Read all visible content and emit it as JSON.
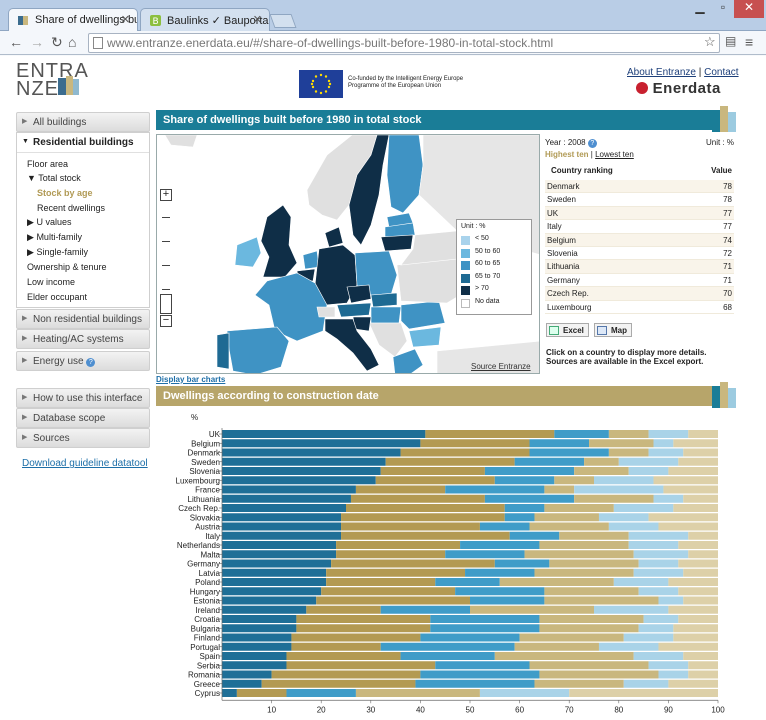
{
  "browser": {
    "tabs": [
      {
        "title": "Share of dwellings built",
        "active": true
      },
      {
        "title": "Baulinks ✓ Bauportal für",
        "active": false
      }
    ],
    "url_prefix": "www.entranze.enerdata.eu/",
    "url_path": "#/share-of-dwellings-built-before-1980-in-total-stock.html"
  },
  "header": {
    "logo_line1": "ENTRA",
    "logo_line2": "NZE",
    "eu_text": "Co-funded by the Intelligent Energy Europe Programme of the European Union",
    "about_link": "About Entranze",
    "separator": "|",
    "contact_link": "Contact",
    "brand": "Enerdata"
  },
  "sidebar": {
    "all_buildings": "All buildings",
    "residential": "Residential buildings",
    "sub": [
      {
        "label": "Floor area"
      },
      {
        "label": "Total stock",
        "expanded": true
      },
      {
        "label": "Stock by age",
        "active": true
      },
      {
        "label": "Recent dwellings"
      },
      {
        "label": "U values",
        "collapsed": true
      },
      {
        "label": "Multi-family",
        "collapsed": true
      },
      {
        "label": "Single-family",
        "collapsed": true
      },
      {
        "label": "Ownership & tenure"
      },
      {
        "label": "Low income"
      },
      {
        "label": "Elder occupant"
      }
    ],
    "non_residential": "Non residential buildings",
    "heating": "Heating/AC systems",
    "energy_use": "Energy use",
    "how_to": "How to use this interface",
    "database_scope": "Database scope",
    "sources": "Sources",
    "download": "Download guideline datatool"
  },
  "map_section": {
    "title": "Share of dwellings built before 1980 in total stock",
    "source_link": "Source Entranze",
    "display_bar_charts": "Display bar charts",
    "zoom_plus": "+",
    "zoom_minus": "−",
    "legend": {
      "unit_label": "Unit : %",
      "items": [
        {
          "label": "< 50",
          "color": "#a9d3ec"
        },
        {
          "label": "50 to 60",
          "color": "#6bb8df"
        },
        {
          "label": "60 to 65",
          "color": "#3f93c4"
        },
        {
          "label": "65 to 70",
          "color": "#1e6a93"
        },
        {
          "label": "> 70",
          "color": "#0f2e47"
        },
        {
          "label": "No data",
          "color": "#ffffff"
        }
      ]
    }
  },
  "ranking": {
    "year_label": "Year : 2008",
    "unit_label": "Unit : %",
    "highest": "Highest ten",
    "sep": "|",
    "lowest": "Lowest ten",
    "col_country": "Country ranking",
    "col_value": "Value",
    "rows": [
      {
        "country": "Denmark",
        "value": "78"
      },
      {
        "country": "Sweden",
        "value": "78"
      },
      {
        "country": "UK",
        "value": "77"
      },
      {
        "country": "Italy",
        "value": "77"
      },
      {
        "country": "Belgium",
        "value": "74"
      },
      {
        "country": "Slovenia",
        "value": "72"
      },
      {
        "country": "Lithuania",
        "value": "71"
      },
      {
        "country": "Germany",
        "value": "71"
      },
      {
        "country": "Czech Rep.",
        "value": "70"
      },
      {
        "country": "Luxembourg",
        "value": "68"
      }
    ],
    "excel_btn": "Excel",
    "map_btn": "Map",
    "note": "Click on a country to display more details. Sources are available in the Excel export."
  },
  "bars_section": {
    "title": "Dwellings according to construction date"
  },
  "chart_data": {
    "type": "bar",
    "orientation": "horizontal",
    "stacked": true,
    "ylabel": "%",
    "xlim": [
      0,
      100
    ],
    "xticks": [
      "10",
      "20",
      "30",
      "40",
      "50",
      "60",
      "70",
      "80",
      "90",
      "100"
    ],
    "categories": [
      "UK",
      "Belgium",
      "Denmark",
      "Sweden",
      "Slovenia",
      "Luxembourg",
      "France",
      "Lithuania",
      "Czech Rep.",
      "Slovakia",
      "Austria",
      "Italy",
      "Netherlands",
      "Malta",
      "Germany",
      "Latvia",
      "Poland",
      "Hungary",
      "Estonia",
      "Ireland",
      "Croatia",
      "Bulgaria",
      "Finland",
      "Portugal",
      "Spain",
      "Serbia",
      "Romania",
      "Greece",
      "Cyprus"
    ],
    "colors": [
      "#1f6f97",
      "#b39a52",
      "#3f9cc8",
      "#c9b77e",
      "#a9d3e8",
      "#ddd0a8"
    ],
    "series": [
      {
        "values": [
          41,
          40,
          36,
          33,
          32,
          31,
          27,
          26,
          25,
          24,
          24,
          24,
          23,
          23,
          22,
          21,
          21,
          20,
          19,
          17,
          15,
          15,
          14,
          14,
          13,
          13,
          10,
          8,
          3
        ]
      },
      {
        "values": [
          26,
          22,
          26,
          26,
          21,
          24,
          18,
          27,
          32,
          33,
          28,
          34,
          25,
          22,
          33,
          28,
          22,
          27,
          31,
          15,
          27,
          27,
          26,
          18,
          23,
          30,
          30,
          31,
          10
        ]
      },
      {
        "values": [
          11,
          12,
          16,
          14,
          18,
          12,
          20,
          18,
          8,
          6,
          10,
          10,
          16,
          16,
          11,
          14,
          13,
          18,
          15,
          18,
          22,
          22,
          20,
          27,
          19,
          19,
          24,
          24,
          14
        ]
      },
      {
        "values": [
          8,
          13,
          8,
          7,
          11,
          8,
          6,
          16,
          14,
          13,
          16,
          14,
          18,
          22,
          18,
          20,
          23,
          19,
          23,
          25,
          21,
          20,
          21,
          17,
          28,
          24,
          24,
          18,
          25
        ]
      },
      {
        "values": [
          8,
          4,
          7,
          12,
          8,
          12,
          18,
          6,
          12,
          10,
          10,
          12,
          10,
          11,
          8,
          10,
          11,
          8,
          5,
          15,
          7,
          7,
          10,
          12,
          10,
          8,
          6,
          9,
          18
        ]
      },
      {
        "values": [
          6,
          9,
          7,
          8,
          10,
          13,
          11,
          7,
          9,
          14,
          12,
          6,
          8,
          6,
          8,
          7,
          10,
          8,
          7,
          10,
          8,
          9,
          9,
          12,
          7,
          6,
          6,
          10,
          30
        ]
      }
    ]
  }
}
